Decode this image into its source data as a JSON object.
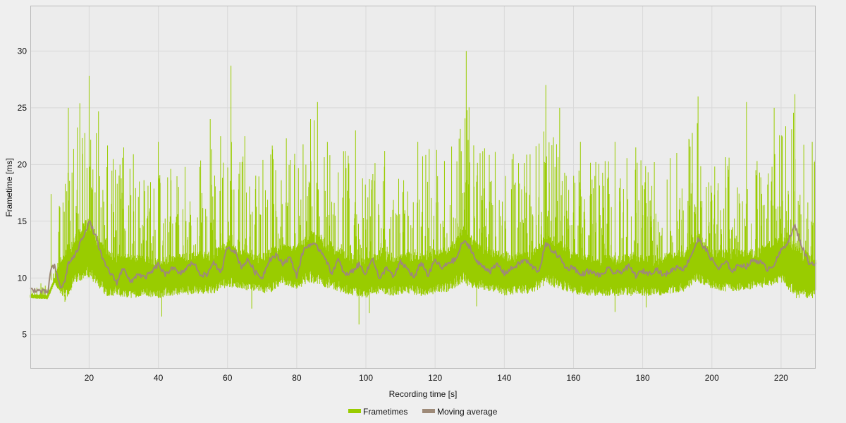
{
  "chart_data": {
    "type": "line",
    "title": "",
    "xlabel": "Recording time [s]",
    "ylabel": "Frametime [ms]",
    "xlim": [
      3,
      230
    ],
    "ylim": [
      2,
      34
    ],
    "x_ticks": [
      20,
      40,
      60,
      80,
      100,
      120,
      140,
      160,
      180,
      200,
      220
    ],
    "y_ticks": [
      5,
      10,
      15,
      20,
      25,
      30
    ],
    "grid": true,
    "legend_position": "bottom-center",
    "colors": {
      "Frametimes": "#99cc00",
      "Moving average": "#9e8a78"
    },
    "series": [
      {
        "name": "Frametimes",
        "type": "band",
        "x": [
          3,
          8,
          10,
          13,
          16,
          19,
          22,
          25,
          28,
          32,
          36,
          40,
          44,
          48,
          52,
          56,
          60,
          64,
          68,
          72,
          76,
          80,
          84,
          88,
          92,
          96,
          100,
          104,
          108,
          112,
          116,
          120,
          124,
          128,
          132,
          136,
          140,
          144,
          148,
          152,
          156,
          160,
          164,
          168,
          172,
          176,
          180,
          184,
          188,
          192,
          196,
          200,
          204,
          208,
          212,
          216,
          220,
          224,
          228,
          230
        ],
        "min": [
          8.2,
          8.1,
          9.5,
          7.9,
          9.5,
          10.0,
          9.2,
          8.4,
          8.4,
          8.2,
          8.4,
          8.2,
          8.4,
          8.5,
          8.6,
          8.6,
          9.2,
          9.0,
          8.8,
          8.6,
          9.4,
          9.0,
          9.6,
          9.2,
          8.8,
          8.4,
          8.2,
          8.6,
          8.4,
          8.6,
          8.4,
          8.6,
          8.8,
          9.4,
          9.0,
          8.8,
          8.4,
          8.6,
          8.6,
          9.4,
          9.0,
          8.6,
          8.4,
          8.4,
          8.4,
          8.4,
          8.4,
          8.4,
          8.6,
          8.8,
          9.6,
          9.0,
          8.8,
          8.8,
          9.0,
          9.2,
          9.6,
          8.2,
          8.2,
          8.2
        ],
        "max": [
          9.5,
          9.6,
          11.5,
          23.5,
          24.0,
          27.8,
          26.0,
          22.5,
          21.0,
          21.5,
          20.5,
          20.0,
          20.5,
          21.0,
          21.0,
          21.5,
          23.5,
          21.0,
          19.5,
          22.0,
          21.5,
          22.0,
          25.0,
          24.0,
          22.0,
          21.0,
          20.0,
          21.5,
          21.0,
          21.0,
          21.5,
          21.5,
          22.5,
          27.0,
          23.0,
          22.0,
          21.5,
          21.0,
          21.0,
          25.0,
          24.0,
          21.0,
          20.5,
          20.5,
          20.5,
          21.0,
          20.5,
          20.5,
          21.0,
          21.5,
          25.0,
          21.0,
          21.5,
          21.5,
          21.0,
          22.0,
          23.5,
          25.0,
          21.5,
          21.0
        ],
        "spikes": [
          [
            9,
            17.4
          ],
          [
            14,
            25
          ],
          [
            20,
            27.8
          ],
          [
            30,
            21.5
          ],
          [
            40,
            22.0
          ],
          [
            55,
            24.0
          ],
          [
            58,
            22.5
          ],
          [
            61,
            28.7
          ],
          [
            65,
            22.5
          ],
          [
            77,
            22.3
          ],
          [
            84,
            24.0
          ],
          [
            86,
            25.5
          ],
          [
            97,
            23.0
          ],
          [
            115,
            22.0
          ],
          [
            129,
            30.0
          ],
          [
            133,
            21.0
          ],
          [
            152,
            27.0
          ],
          [
            156,
            25.0
          ],
          [
            162,
            22.0
          ],
          [
            172,
            22.0
          ],
          [
            178,
            21.5
          ],
          [
            196,
            26.0
          ],
          [
            210,
            25.5
          ],
          [
            218,
            25.0
          ],
          [
            224,
            26.2
          ],
          [
            229,
            22.0
          ]
        ],
        "dips": [
          [
            13,
            7.9
          ],
          [
            41,
            6.6
          ],
          [
            67,
            7.3
          ],
          [
            98,
            5.9
          ],
          [
            101,
            6.9
          ],
          [
            132,
            7.5
          ],
          [
            172,
            7.0
          ],
          [
            181,
            7.4
          ]
        ]
      },
      {
        "name": "Moving average",
        "x": [
          3,
          5,
          8,
          9,
          10,
          12,
          13,
          14,
          16,
          18,
          19,
          20,
          22,
          24,
          26,
          28,
          30,
          32,
          34,
          36,
          38,
          40,
          42,
          44,
          46,
          48,
          50,
          52,
          54,
          56,
          58,
          60,
          62,
          64,
          66,
          68,
          70,
          72,
          74,
          76,
          78,
          80,
          82,
          84,
          86,
          88,
          90,
          92,
          94,
          96,
          98,
          100,
          102,
          104,
          106,
          108,
          110,
          112,
          114,
          116,
          118,
          120,
          122,
          124,
          126,
          128,
          130,
          132,
          134,
          136,
          138,
          140,
          142,
          144,
          146,
          148,
          150,
          152,
          154,
          156,
          158,
          160,
          162,
          164,
          166,
          168,
          170,
          172,
          174,
          176,
          178,
          180,
          182,
          184,
          186,
          188,
          190,
          192,
          194,
          196,
          198,
          200,
          202,
          204,
          206,
          208,
          210,
          212,
          214,
          216,
          218,
          220,
          222,
          224,
          226,
          228,
          230
        ],
        "values": [
          9.0,
          8.9,
          8.7,
          10.8,
          11.0,
          9.0,
          9.8,
          11.3,
          12.0,
          13.5,
          14.2,
          15.0,
          13.6,
          11.5,
          10.5,
          9.6,
          11.0,
          9.5,
          10.4,
          10.0,
          10.5,
          11.2,
          10.2,
          11.0,
          10.3,
          10.8,
          11.4,
          10.4,
          10.2,
          11.5,
          10.3,
          12.8,
          12.4,
          11.0,
          11.6,
          10.5,
          10.0,
          11.6,
          12.0,
          11.3,
          11.8,
          10.2,
          12.5,
          13.0,
          12.7,
          12.0,
          10.4,
          11.6,
          10.2,
          10.6,
          11.2,
          10.4,
          11.8,
          9.8,
          11.0,
          10.0,
          11.4,
          10.8,
          10.0,
          11.4,
          10.2,
          11.6,
          10.8,
          11.4,
          11.6,
          13.2,
          12.8,
          11.4,
          11.0,
          10.6,
          11.2,
          10.4,
          10.8,
          11.2,
          11.6,
          11.0,
          10.6,
          13.0,
          12.4,
          11.8,
          10.8,
          11.0,
          10.2,
          10.6,
          10.4,
          10.2,
          10.8,
          10.4,
          10.6,
          11.0,
          10.2,
          10.6,
          10.4,
          10.8,
          10.2,
          10.6,
          11.0,
          10.8,
          12.0,
          13.4,
          12.6,
          11.6,
          10.8,
          11.4,
          10.6,
          11.2,
          11.0,
          11.6,
          11.4,
          10.8,
          11.2,
          12.4,
          13.2,
          14.6,
          12.8,
          11.4,
          11.2
        ],
        "wiggle": 0.45
      }
    ]
  }
}
